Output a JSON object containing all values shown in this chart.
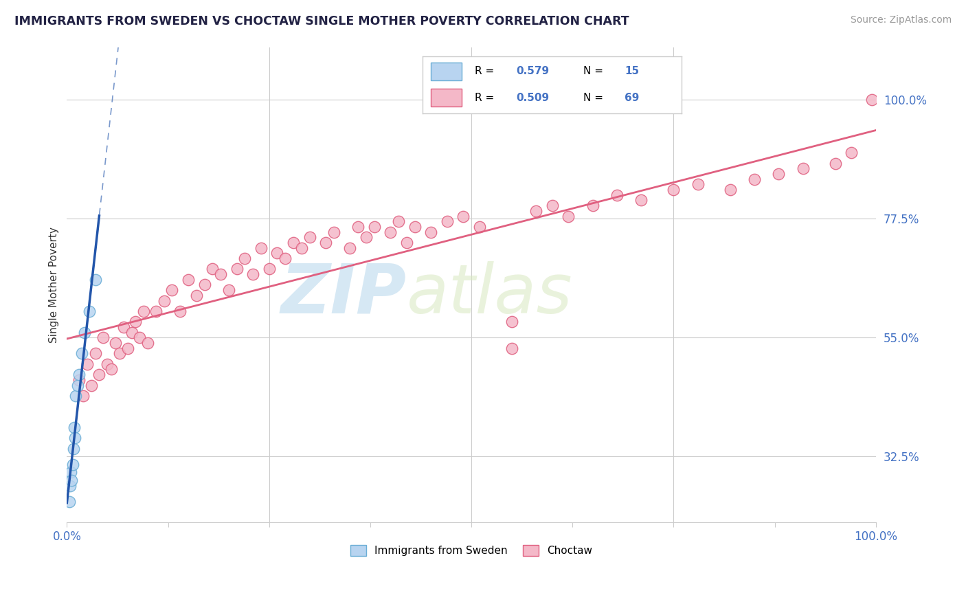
{
  "title": "IMMIGRANTS FROM SWEDEN VS CHOCTAW SINGLE MOTHER POVERTY CORRELATION CHART",
  "source": "Source: ZipAtlas.com",
  "ylabel": "Single Mother Poverty",
  "xlim": [
    0,
    100
  ],
  "ylim": [
    20,
    110
  ],
  "ytick_vals": [
    32.5,
    55.0,
    77.5,
    100.0
  ],
  "ytick_labels": [
    "32.5%",
    "55.0%",
    "77.5%",
    "100.0%"
  ],
  "xtick_vals": [
    0,
    12.5,
    25,
    37.5,
    50,
    62.5,
    75,
    87.5,
    100
  ],
  "xtick_edge_labels": {
    "0": "0.0%",
    "100": "100.0%"
  },
  "r_sweden": "0.579",
  "n_sweden": "15",
  "r_choctaw": "0.509",
  "n_choctaw": "69",
  "legend_label_sweden": "Immigrants from Sweden",
  "legend_label_choctaw": "Choctaw",
  "watermark_zip": "ZIP",
  "watermark_atlas": "atlas",
  "sweden_fill": "#b8d4f0",
  "sweden_edge": "#6baed6",
  "choctaw_fill": "#f4b8c8",
  "choctaw_edge": "#e06080",
  "sweden_line_color": "#2255aa",
  "choctaw_line_color": "#e06080",
  "grid_color": "#cccccc",
  "title_color": "#222244",
  "source_color": "#999999",
  "tick_color": "#4472c4",
  "bg_color": "#ffffff",
  "sweden_x": [
    0.3,
    0.4,
    0.5,
    0.6,
    0.7,
    0.8,
    0.9,
    1.0,
    1.1,
    1.3,
    1.5,
    1.8,
    2.2,
    2.8,
    3.5
  ],
  "sweden_y": [
    24.0,
    27.0,
    29.5,
    28.0,
    31.0,
    34.0,
    38.0,
    36.0,
    44.0,
    46.0,
    48.0,
    52.0,
    56.0,
    60.0,
    66.0
  ],
  "choctaw_x": [
    1.5,
    2.0,
    2.5,
    3.0,
    3.5,
    4.0,
    4.5,
    5.0,
    5.5,
    6.0,
    6.5,
    7.0,
    7.5,
    8.0,
    8.5,
    9.0,
    9.5,
    10.0,
    11.0,
    12.0,
    13.0,
    14.0,
    15.0,
    16.0,
    17.0,
    18.0,
    19.0,
    20.0,
    21.0,
    22.0,
    23.0,
    24.0,
    25.0,
    26.0,
    27.0,
    28.0,
    29.0,
    30.0,
    32.0,
    33.0,
    35.0,
    36.0,
    37.0,
    38.0,
    40.0,
    41.0,
    42.0,
    43.0,
    45.0,
    47.0,
    49.0,
    51.0,
    55.0,
    58.0,
    60.0,
    62.0,
    65.0,
    68.0,
    71.0,
    75.0,
    78.0,
    82.0,
    85.0,
    88.0,
    91.0,
    95.0,
    97.0,
    99.5,
    55.0
  ],
  "choctaw_y": [
    47.0,
    44.0,
    50.0,
    46.0,
    52.0,
    48.0,
    55.0,
    50.0,
    49.0,
    54.0,
    52.0,
    57.0,
    53.0,
    56.0,
    58.0,
    55.0,
    60.0,
    54.0,
    60.0,
    62.0,
    64.0,
    60.0,
    66.0,
    63.0,
    65.0,
    68.0,
    67.0,
    64.0,
    68.0,
    70.0,
    67.0,
    72.0,
    68.0,
    71.0,
    70.0,
    73.0,
    72.0,
    74.0,
    73.0,
    75.0,
    72.0,
    76.0,
    74.0,
    76.0,
    75.0,
    77.0,
    73.0,
    76.0,
    75.0,
    77.0,
    78.0,
    76.0,
    58.0,
    79.0,
    80.0,
    78.0,
    80.0,
    82.0,
    81.0,
    83.0,
    84.0,
    83.0,
    85.0,
    86.0,
    87.0,
    88.0,
    90.0,
    100.0,
    53.0
  ]
}
